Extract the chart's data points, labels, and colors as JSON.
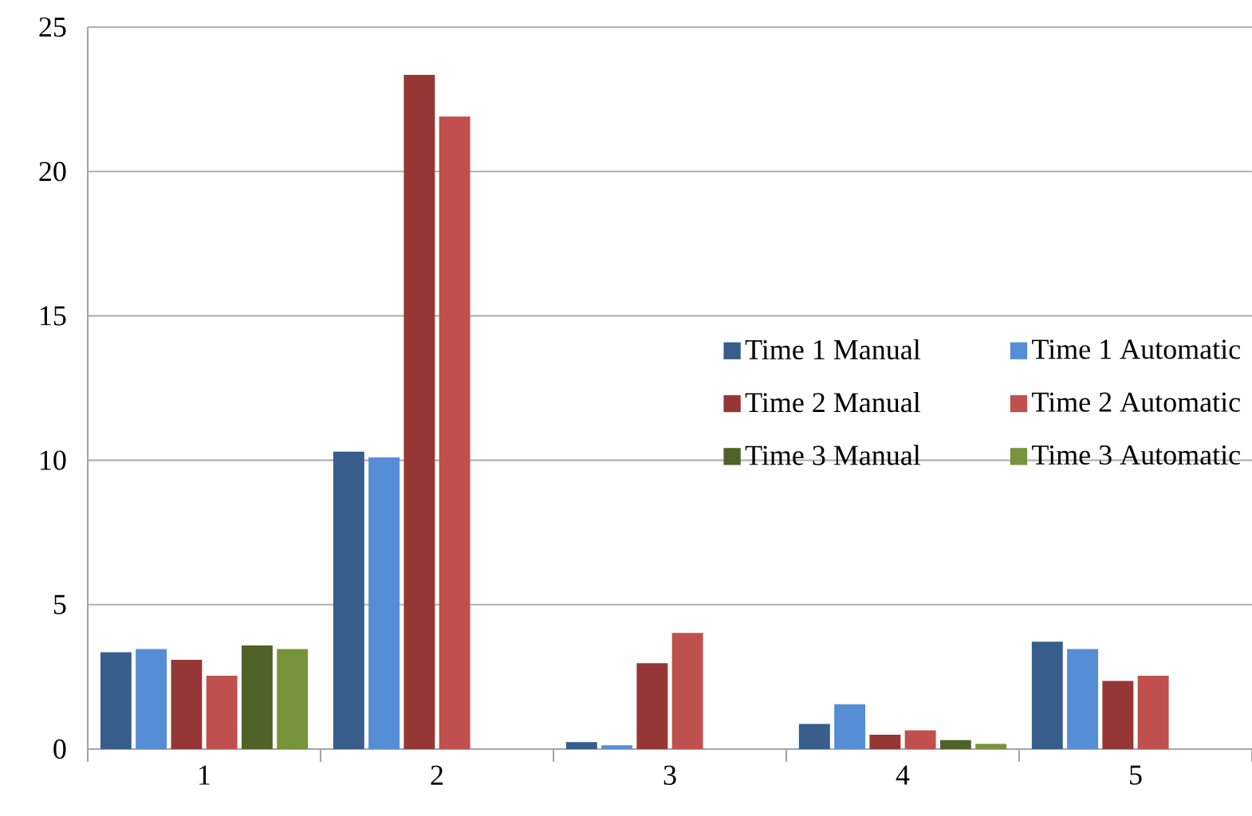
{
  "chart_data": {
    "type": "bar",
    "categories": [
      "1",
      "2",
      "3",
      "4",
      "5"
    ],
    "series": [
      {
        "name": "Time 1 Manual",
        "color": "#385d8a",
        "values": [
          3.35,
          10.3,
          0.24,
          0.87,
          3.72
        ]
      },
      {
        "name": "Time 1 Automatic",
        "color": "#558ed5",
        "values": [
          3.46,
          10.1,
          0.13,
          1.55,
          3.46
        ]
      },
      {
        "name": "Time 2 Manual",
        "color": "#953735",
        "values": [
          3.09,
          23.35,
          2.97,
          0.5,
          2.36
        ]
      },
      {
        "name": "Time 2 Automatic",
        "color": "#c0504d",
        "values": [
          2.54,
          21.9,
          4.02,
          0.65,
          2.54
        ]
      },
      {
        "name": "Time 3 Manual",
        "color": "#4f6228",
        "values": [
          3.59,
          null,
          null,
          0.31,
          null
        ]
      },
      {
        "name": "Time 3 Automatic",
        "color": "#77933c",
        "values": [
          3.46,
          null,
          null,
          0.18,
          null
        ]
      }
    ],
    "ylim": [
      0,
      25
    ],
    "yticks": [
      0,
      5,
      10,
      15,
      20,
      25
    ],
    "grid": "y",
    "legend": "right"
  }
}
